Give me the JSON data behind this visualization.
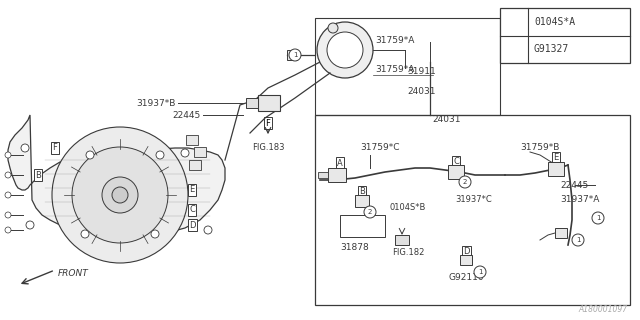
{
  "bg_color": "#ffffff",
  "lc": "#3a3a3a",
  "watermark": "A180001097",
  "legend": [
    {
      "num": "1",
      "label": "0104S*A"
    },
    {
      "num": "2",
      "label": "G91327"
    }
  ],
  "figsize": [
    6.4,
    3.2
  ],
  "dpi": 100
}
